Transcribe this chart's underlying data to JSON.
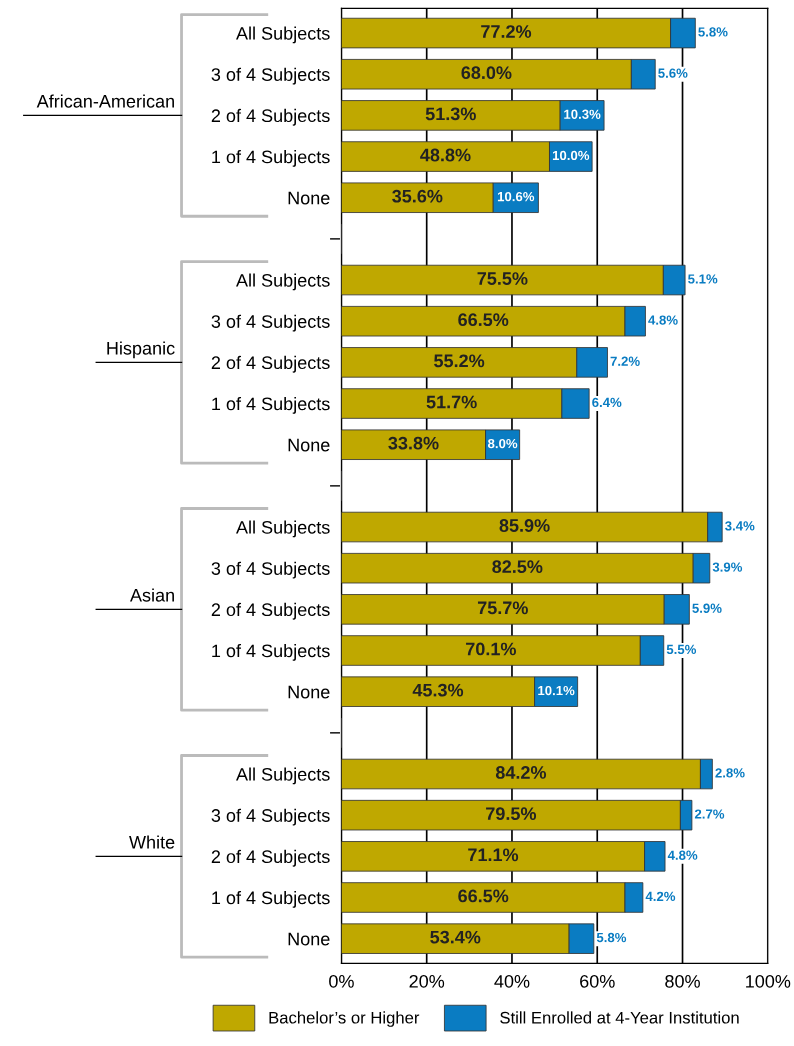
{
  "chart_data": {
    "type": "bar",
    "orientation": "horizontal",
    "stacked": true,
    "categories": [
      "All Subjects",
      "3 of 4 Subjects",
      "2 of 4 Subjects",
      "1 of 4 Subjects",
      "None",
      null,
      "All Subjects",
      "3 of 4 Subjects",
      "2 of 4 Subjects",
      "1 of 4 Subjects",
      "None",
      null,
      "All Subjects",
      "3 of 4 Subjects",
      "2 of 4 Subjects",
      "1 of 4 Subjects",
      "None",
      null,
      "All Subjects",
      "3 of 4 Subjects",
      "2 of 4 Subjects",
      "1 of 4 Subjects",
      "None"
    ],
    "series": [
      {
        "name": "Bachelor’s or Higher",
        "color": "#bfa800",
        "values": [
          77.2,
          68.0,
          51.3,
          48.8,
          35.6,
          null,
          75.5,
          66.5,
          55.2,
          51.7,
          33.8,
          null,
          85.9,
          82.5,
          75.7,
          70.1,
          45.3,
          null,
          84.2,
          79.5,
          71.1,
          66.5,
          53.4
        ],
        "value_labels": [
          "77.2%",
          "68.0%",
          "51.3%",
          "48.8%",
          "35.6%",
          null,
          "75.5%",
          "66.5%",
          "55.2%",
          "51.7%",
          "33.8%",
          null,
          "85.9%",
          "82.5%",
          "75.7%",
          "70.1%",
          "45.3%",
          null,
          "84.2%",
          "79.5%",
          "71.1%",
          "66.5%",
          "53.4%"
        ]
      },
      {
        "name": "Still Enrolled at 4-Year Institution",
        "color": "#0a7cc2",
        "values": [
          5.8,
          5.6,
          10.3,
          10.0,
          10.6,
          null,
          5.1,
          4.8,
          7.2,
          6.4,
          8.0,
          null,
          3.4,
          3.9,
          5.9,
          5.5,
          10.1,
          null,
          2.8,
          2.7,
          4.8,
          4.2,
          5.8
        ],
        "value_labels": [
          "5.8%",
          "5.6%",
          "10.3%",
          "10.0%",
          "10.6%",
          null,
          "5.1%",
          "4.8%",
          "7.2%",
          "6.4%",
          "8.0%",
          null,
          "3.4%",
          "3.9%",
          "5.9%",
          "5.5%",
          "10.1%",
          null,
          "2.8%",
          "2.7%",
          "4.8%",
          "4.2%",
          "5.8%"
        ]
      }
    ],
    "annotations": [
      "African-American",
      "Hispanic",
      "Asian",
      "White"
    ],
    "xlim": [
      0,
      100
    ],
    "xticks": [
      {
        "value": 0,
        "label": "0%"
      },
      {
        "value": 20,
        "label": "20%"
      },
      {
        "value": 40,
        "label": "40%"
      },
      {
        "value": 60,
        "label": "60%"
      },
      {
        "value": 80,
        "label": "80%"
      },
      {
        "value": 100,
        "label": "100%"
      }
    ],
    "grid": "x",
    "legend": "bottom"
  }
}
